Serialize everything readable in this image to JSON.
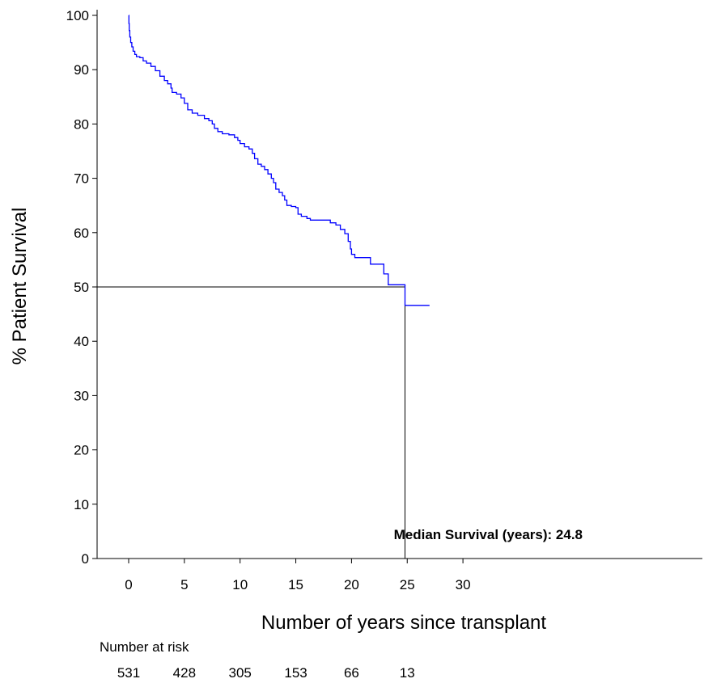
{
  "chart_data": {
    "type": "line",
    "xlabel": "Number of years since transplant",
    "ylabel": "% Patient Survival",
    "xlim": [
      -1.7,
      31
    ],
    "ylim": [
      0,
      100
    ],
    "x_ticks": [
      0,
      5,
      10,
      15,
      20,
      25,
      30
    ],
    "y_ticks": [
      0,
      10,
      20,
      30,
      40,
      50,
      60,
      70,
      80,
      90,
      100
    ],
    "grid": false,
    "series": [
      {
        "color": "#0000ff",
        "points": [
          [
            0,
            100
          ],
          [
            0.02,
            98.5
          ],
          [
            0.05,
            97.2
          ],
          [
            0.1,
            96.0
          ],
          [
            0.18,
            95.0
          ],
          [
            0.28,
            94.2
          ],
          [
            0.4,
            93.4
          ],
          [
            0.55,
            92.8
          ],
          [
            0.7,
            92.4
          ],
          [
            1.0,
            92.2
          ],
          [
            1.3,
            91.6
          ],
          [
            1.6,
            91.2
          ],
          [
            2.0,
            90.6
          ],
          [
            2.4,
            89.8
          ],
          [
            2.8,
            88.8
          ],
          [
            3.2,
            88.0
          ],
          [
            3.5,
            87.4
          ],
          [
            3.8,
            86.6
          ],
          [
            3.9,
            85.8
          ],
          [
            4.3,
            85.5
          ],
          [
            4.7,
            84.8
          ],
          [
            5.0,
            83.8
          ],
          [
            5.3,
            82.6
          ],
          [
            5.7,
            82.0
          ],
          [
            6.2,
            81.6
          ],
          [
            6.8,
            81.0
          ],
          [
            7.2,
            80.6
          ],
          [
            7.5,
            80.0
          ],
          [
            7.7,
            79.2
          ],
          [
            8.0,
            78.6
          ],
          [
            8.4,
            78.2
          ],
          [
            9.0,
            78.0
          ],
          [
            9.5,
            77.5
          ],
          [
            9.8,
            77.0
          ],
          [
            10.0,
            76.4
          ],
          [
            10.4,
            75.8
          ],
          [
            10.8,
            75.4
          ],
          [
            11.1,
            74.6
          ],
          [
            11.3,
            73.6
          ],
          [
            11.6,
            72.6
          ],
          [
            11.9,
            72.2
          ],
          [
            12.2,
            71.6
          ],
          [
            12.5,
            70.8
          ],
          [
            12.8,
            70.0
          ],
          [
            13.0,
            69.2
          ],
          [
            13.2,
            68.0
          ],
          [
            13.5,
            67.4
          ],
          [
            13.8,
            66.8
          ],
          [
            14.0,
            66.0
          ],
          [
            14.2,
            65.0
          ],
          [
            14.6,
            64.8
          ],
          [
            15.0,
            64.6
          ],
          [
            15.2,
            63.4
          ],
          [
            15.5,
            63.0
          ],
          [
            16.0,
            62.6
          ],
          [
            16.3,
            62.3
          ],
          [
            18.1,
            61.8
          ],
          [
            18.6,
            61.4
          ],
          [
            19.0,
            60.6
          ],
          [
            19.4,
            59.8
          ],
          [
            19.7,
            58.4
          ],
          [
            19.9,
            57.0
          ],
          [
            20.0,
            56.0
          ],
          [
            20.3,
            55.4
          ],
          [
            21.7,
            54.2
          ],
          [
            22.9,
            52.4
          ],
          [
            23.3,
            50.4
          ],
          [
            24.8,
            46.6
          ],
          [
            27.0,
            46.6
          ]
        ]
      }
    ],
    "annotations": {
      "median_text": "Median Survival (years): 24.8",
      "median_x": 24.8,
      "median_y": 50
    },
    "risk_table": {
      "title": "Number at risk",
      "x": [
        0,
        5,
        10,
        15,
        20,
        25
      ],
      "counts": [
        "531",
        "428",
        "305",
        "153",
        "66",
        "13"
      ]
    }
  }
}
